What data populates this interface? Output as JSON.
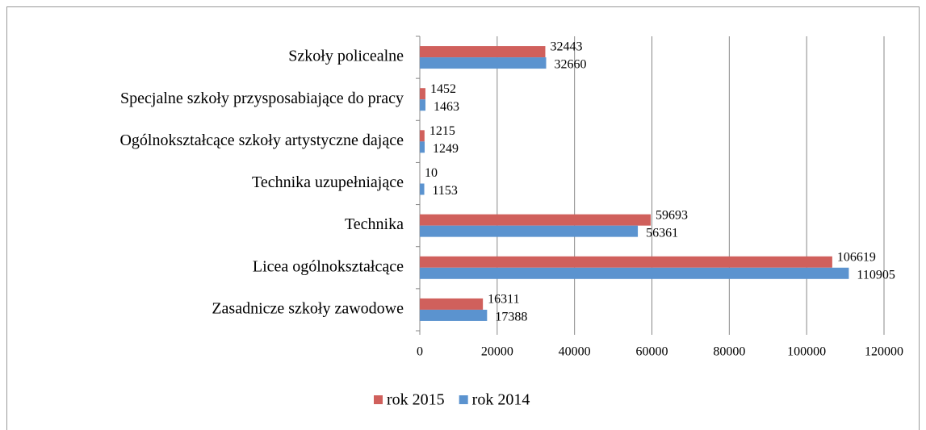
{
  "chart_data": {
    "type": "bar",
    "orientation": "horizontal",
    "categories": [
      "Zasadnicze szkoły zawodowe",
      "Licea ogólnokształcące",
      "Technika",
      "Technika uzupełniające",
      "Ogólnokształcące szkoły artystyczne dające",
      "Specjalne szkoły przysposabiające do pracy",
      "Szkoły policealne"
    ],
    "series": [
      {
        "name": "rok 2015",
        "color": "#d0605c",
        "values": [
          16311,
          106619,
          59693,
          10,
          1215,
          1452,
          32443
        ]
      },
      {
        "name": "rok 2014",
        "color": "#5b93cf",
        "values": [
          17388,
          110905,
          56361,
          1153,
          1249,
          1463,
          32660
        ]
      }
    ],
    "xlim": [
      0,
      120000
    ],
    "xticks": [
      0,
      20000,
      40000,
      60000,
      80000,
      100000,
      120000
    ],
    "grid": true,
    "legend": "bottom"
  }
}
